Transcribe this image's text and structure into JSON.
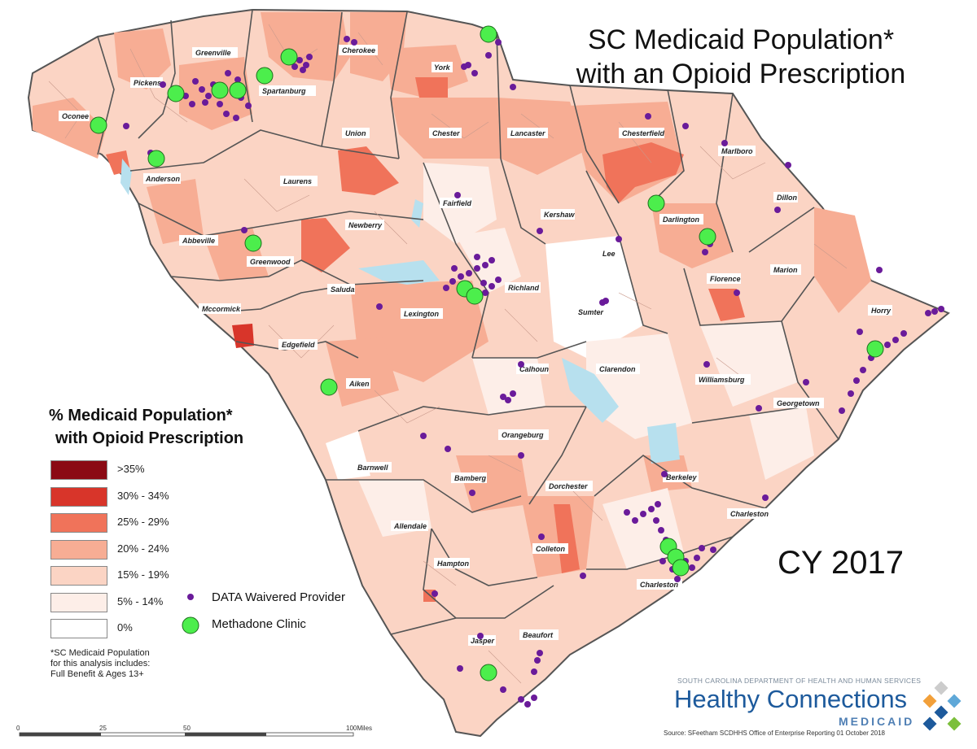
{
  "title": {
    "line1": "SC Medicaid Population*",
    "line2": "with an Opioid Prescription"
  },
  "year_label": "CY 2017",
  "legend": {
    "title_line1": "% Medicaid Population*",
    "title_line2": "with Opioid Prescription",
    "classes": [
      {
        "label": ">35%",
        "color": "#8b0a14"
      },
      {
        "label": "30% - 34%",
        "color": "#d8352a"
      },
      {
        "label": "25% - 29%",
        "color": "#f0735a"
      },
      {
        "label": "20% - 24%",
        "color": "#f7ad94"
      },
      {
        "label": "15% - 19%",
        "color": "#fbd4c4"
      },
      {
        "label": "5% - 14%",
        "color": "#fdeee8"
      },
      {
        "label": "0%",
        "color": "#ffffff"
      }
    ],
    "symbols": [
      {
        "label": "DATA Waivered Provider",
        "icon": "purple-dot",
        "color": "#6a1b9a"
      },
      {
        "label": "Methadone Clinic",
        "icon": "green-circle",
        "color": "#4cee4c"
      }
    ]
  },
  "footnote": {
    "line1": "*SC Medicaid Population",
    "line2": "for this analysis includes:",
    "line3": "Full Benefit & Ages 13+"
  },
  "scale_bar": [
    "0",
    "25",
    "50",
    "100Miles"
  ],
  "logo": {
    "department": "SOUTH CAROLINA DEPARTMENT OF HEALTH AND HUMAN SERVICES",
    "name": "Healthy Connections",
    "sub": "MEDICAID"
  },
  "source": "Source: SFeetham    SCDHHS Office of Enterprise Reporting    01 October 2018",
  "counties": [
    "Greenville",
    "Pickens",
    "Spartanburg",
    "Cherokee",
    "York",
    "Oconee",
    "Anderson",
    "Union",
    "Chester",
    "Lancaster",
    "Chesterfield",
    "Marlboro",
    "Laurens",
    "Fairfield",
    "Kershaw",
    "Darlington",
    "Dillon",
    "Abbeville",
    "Newberry",
    "Greenwood",
    "Lee",
    "Marion",
    "Saluda",
    "Richland",
    "Florence",
    "Mccormick",
    "Lexington",
    "Sumter",
    "Horry",
    "Edgefield",
    "Calhoun",
    "Clarendon",
    "Williamsburg",
    "Aiken",
    "Georgetown",
    "Orangeburg",
    "Barnwell",
    "Berkeley",
    "Bamberg",
    "Dorchester",
    "Charleston",
    "Allendale",
    "Colleton",
    "Hampton",
    "Charleston",
    "Jasper",
    "Beaufort"
  ]
}
